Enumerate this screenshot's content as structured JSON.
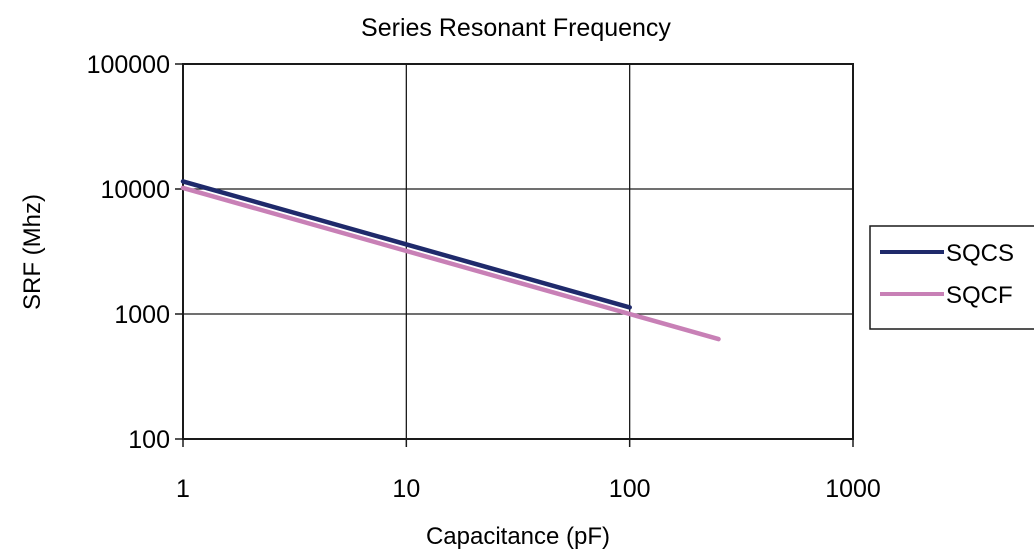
{
  "chart_data": {
    "type": "line",
    "title": "Series Resonant Frequency",
    "xlabel": "Capacitance (pF)",
    "ylabel": "SRF (Mhz)",
    "x_scale": "log",
    "y_scale": "log",
    "xlim": [
      1,
      1000
    ],
    "ylim": [
      100,
      100000
    ],
    "x_ticks": [
      "1",
      "10",
      "100",
      "1000"
    ],
    "y_ticks": [
      "100",
      "1000",
      "10000",
      "100000"
    ],
    "grid": true,
    "legend_position": "right",
    "series": [
      {
        "name": "SQCS",
        "color": "#1f2a6b",
        "x": [
          1,
          100
        ],
        "y": [
          11500,
          1130
        ]
      },
      {
        "name": "SQCF",
        "color": "#c880b6",
        "x": [
          1,
          100,
          250
        ],
        "y": [
          10200,
          1000,
          630
        ]
      }
    ]
  }
}
